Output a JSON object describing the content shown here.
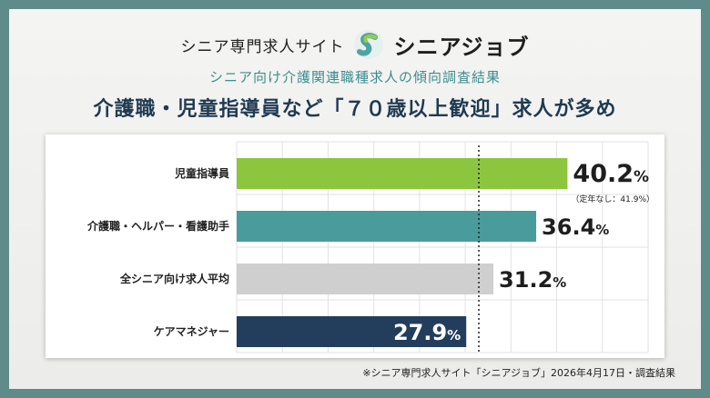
{
  "brand": {
    "subtitle": "シニア専門求人サイト",
    "name": "シニアジョブ",
    "logo_icon": "s-logo-icon"
  },
  "subtitle": "シニア向け介護関連職種求人の傾向調査結果",
  "headline": "介護職・児童指導員など「７０歳以上歓迎」求人が多め",
  "source": "※シニア専門求人サイト「シニアジョブ」2026年4月17日・調査結果",
  "chart_data": {
    "type": "bar",
    "orientation": "horizontal",
    "categories": [
      "児童指導員",
      "介護職・ヘルパー・看護助手",
      "全シニア向け求人平均",
      "ケアマネジャー"
    ],
    "values": [
      40.2,
      36.4,
      31.2,
      27.9
    ],
    "value_labels": [
      "40.2",
      "36.4",
      "31.2",
      "27.9"
    ],
    "unit": "%",
    "annotations": [
      "（定年なし：41.9%）"
    ],
    "colors": [
      "#8cc63f",
      "#4a9b9b",
      "#cfcfcf",
      "#233e5c"
    ],
    "title": "",
    "xlabel": "",
    "ylabel": "",
    "xlim": [
      0,
      50
    ],
    "reference_line": 31.2,
    "grid": true
  }
}
